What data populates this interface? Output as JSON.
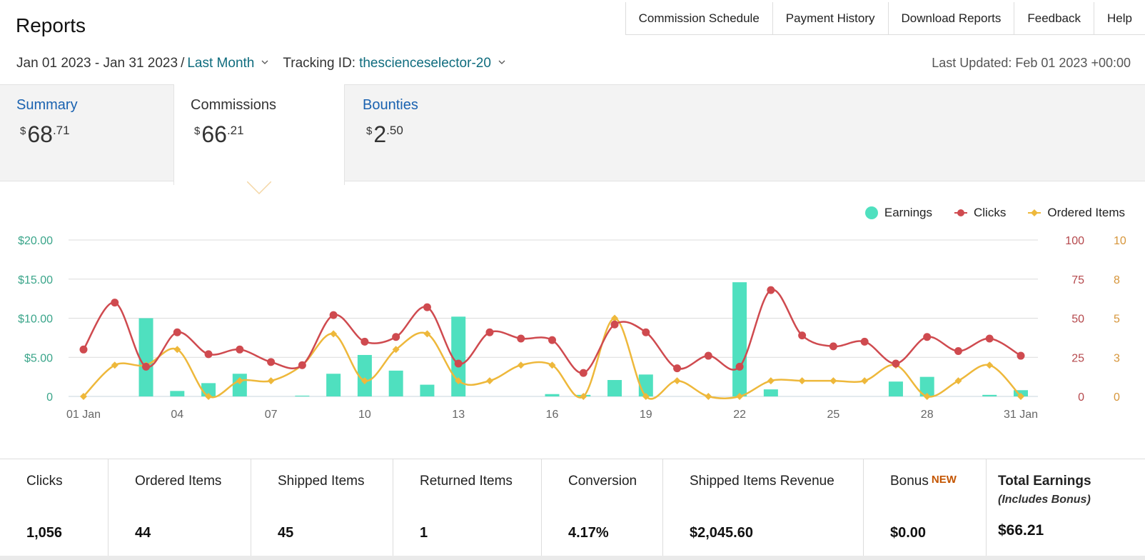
{
  "header": {
    "title": "Reports",
    "nav": [
      "Commission Schedule",
      "Payment History",
      "Download Reports",
      "Feedback",
      "Help"
    ],
    "date_range": "Jan 01 2023 - Jan 31 2023",
    "date_sep": "/",
    "date_preset": "Last Month",
    "tracking_label": "Tracking ID:",
    "tracking_id": "thescienceselector-20",
    "last_updated": "Last Updated: Feb 01 2023 +00:00"
  },
  "tabs": [
    {
      "label": "Summary",
      "currency": "$",
      "whole": "68",
      "cents": ".71"
    },
    {
      "label": "Commissions",
      "currency": "$",
      "whole": "66",
      "cents": ".21"
    },
    {
      "label": "Bounties",
      "currency": "$",
      "whole": "2",
      "cents": ".50"
    }
  ],
  "colors": {
    "earnings": "#4fe0bf",
    "clicks": "#cf4a4f",
    "ordered_items": "#eeb83b",
    "left_axis": "#3aa58a",
    "clicks_axis": "#b5484c",
    "items_axis": "#d6953a"
  },
  "chart_data": {
    "type": "bar+line",
    "legend": [
      "Earnings",
      "Clicks",
      "Ordered Items"
    ],
    "legend_position": "top-right",
    "x": [
      1,
      2,
      3,
      4,
      5,
      6,
      7,
      8,
      9,
      10,
      11,
      12,
      13,
      14,
      15,
      16,
      17,
      18,
      19,
      20,
      21,
      22,
      23,
      24,
      25,
      26,
      27,
      28,
      29,
      30,
      31
    ],
    "x_tick_labels": [
      "01 Jan",
      "04",
      "07",
      "10",
      "13",
      "16",
      "19",
      "22",
      "25",
      "28",
      "31 Jan"
    ],
    "x_tick_positions": [
      1,
      4,
      7,
      10,
      13,
      16,
      19,
      22,
      25,
      28,
      31
    ],
    "y_left": {
      "label": "",
      "ticks": [
        "0",
        "$5.00",
        "$10.00",
        "$15.00",
        "$20.00"
      ],
      "range": [
        0,
        20
      ]
    },
    "y_right_clicks": {
      "ticks": [
        "0",
        "25",
        "50",
        "75",
        "100"
      ],
      "range": [
        0,
        100
      ]
    },
    "y_right_items": {
      "ticks": [
        "0",
        "3",
        "5",
        "8",
        "10"
      ],
      "range": [
        0,
        10
      ]
    },
    "grid": true,
    "series": [
      {
        "name": "Earnings",
        "axis": "left",
        "kind": "bar",
        "values": [
          0,
          0,
          10.0,
          0.7,
          1.7,
          2.9,
          0,
          0.1,
          2.9,
          5.3,
          3.3,
          1.5,
          10.2,
          0,
          0,
          0.3,
          0.2,
          2.1,
          2.8,
          0,
          0,
          14.6,
          0.9,
          0,
          0,
          0,
          1.9,
          2.5,
          0,
          0.2,
          0.8
        ]
      },
      {
        "name": "Clicks",
        "axis": "right_clicks",
        "kind": "line",
        "values": [
          30,
          60,
          19,
          41,
          27,
          30,
          22,
          20,
          52,
          35,
          38,
          57,
          21,
          41,
          37,
          36,
          15,
          46,
          41,
          18,
          26,
          19,
          68,
          39,
          32,
          35,
          21,
          38,
          29,
          37,
          26
        ]
      },
      {
        "name": "Ordered Items",
        "axis": "right_items",
        "kind": "line",
        "values": [
          0,
          2,
          2,
          3,
          0,
          1,
          1,
          2,
          4,
          1,
          3,
          4,
          1,
          1,
          2,
          2,
          0,
          5,
          0,
          1,
          0,
          0,
          1,
          1,
          1,
          1,
          2,
          0,
          1,
          2,
          0
        ]
      }
    ]
  },
  "stats": [
    {
      "label": "Clicks",
      "value": "1,056"
    },
    {
      "label": "Ordered Items",
      "value": "44"
    },
    {
      "label": "Shipped Items",
      "value": "45"
    },
    {
      "label": "Returned Items",
      "value": "1"
    },
    {
      "label": "Conversion",
      "value": "4.17%"
    },
    {
      "label": "Shipped Items Revenue",
      "value": "$2,045.60"
    },
    {
      "label": "Bonus",
      "badge": "NEW",
      "value": "$0.00"
    },
    {
      "label": "Total Earnings",
      "sub": "(Includes Bonus)",
      "value": "$66.21"
    }
  ]
}
